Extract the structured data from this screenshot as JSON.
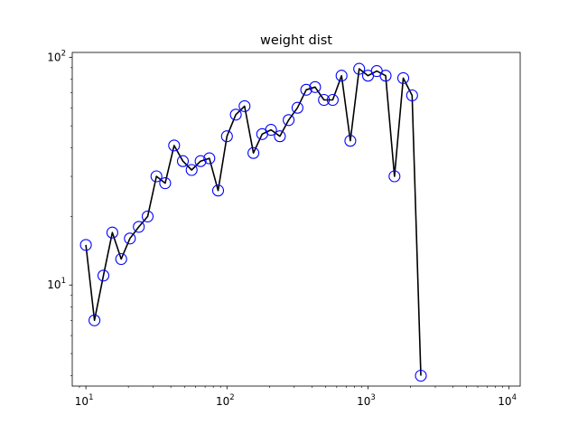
{
  "chart_data": {
    "type": "line",
    "title": "weight dist",
    "xlabel": "",
    "ylabel": "",
    "xscale": "log",
    "yscale": "log",
    "xlim": [
      8.0,
      12000
    ],
    "ylim": [
      3.6,
      105
    ],
    "grid": false,
    "legend": "none",
    "x_ticks": [
      {
        "value": 10,
        "base": "10",
        "exp": "1"
      },
      {
        "value": 100,
        "base": "10",
        "exp": "2"
      },
      {
        "value": 1000,
        "base": "10",
        "exp": "3"
      },
      {
        "value": 10000,
        "base": "10",
        "exp": "4"
      }
    ],
    "y_ticks": [
      {
        "value": 10,
        "base": "10",
        "exp": "1"
      },
      {
        "value": 100,
        "base": "10",
        "exp": "2"
      }
    ],
    "series": [
      {
        "line_color": "#000000",
        "marker": "circle",
        "marker_edge_color": "#0000ff",
        "marker_face_color": "none",
        "x": [
          10.0,
          11.5,
          13.3,
          15.4,
          17.8,
          20.5,
          23.7,
          27.4,
          31.6,
          36.5,
          42.2,
          48.7,
          56.2,
          65.0,
          75.0,
          86.6,
          100.0,
          115.5,
          133.4,
          154.0,
          177.8,
          205.4,
          237.1,
          273.8,
          316.2,
          365.2,
          421.7,
          487.0,
          562.3,
          649.4,
          749.9,
          866.0,
          1000.0,
          1154.8,
          1333.5,
          1540.0,
          1778.3,
          2053.5,
          2371.4
        ],
        "y": [
          15,
          7,
          11,
          17,
          13,
          16,
          18,
          20,
          30,
          28,
          41,
          35,
          32,
          35,
          36,
          26,
          45,
          56,
          61,
          38,
          46,
          48,
          45,
          53,
          60,
          72,
          74,
          65,
          65,
          83,
          43,
          89,
          83,
          87,
          83,
          30,
          81,
          68,
          4
        ]
      }
    ]
  }
}
